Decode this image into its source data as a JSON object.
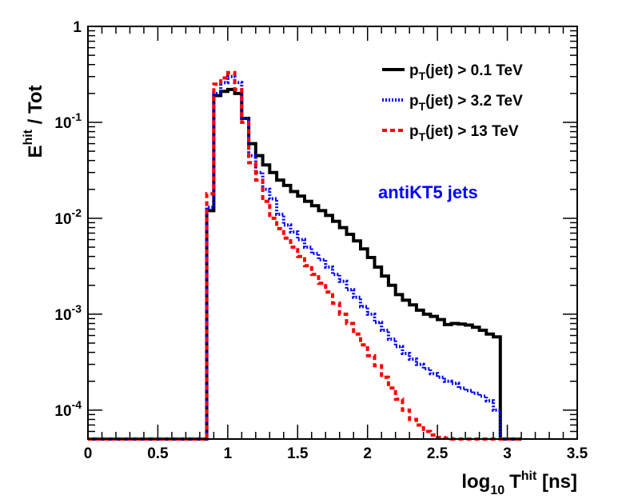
{
  "chart_data": {
    "type": "line",
    "step": true,
    "x_title": {
      "main": "log",
      "sub": "10",
      "var": "T",
      "sup": "hit",
      "unit": " [ns]"
    },
    "y_title": {
      "var": "E",
      "sup": "hit",
      "rest": "  / Tot"
    },
    "xlim": [
      0,
      3.5
    ],
    "ylim": [
      5e-05,
      1
    ],
    "yscale": "log",
    "x_ticks": [
      "0",
      "0.5",
      "1",
      "1.5",
      "2",
      "2.5",
      "3",
      "3.5"
    ],
    "y_ticks": [
      {
        "base": "10",
        "exp": "-4"
      },
      {
        "base": "10",
        "exp": "-3"
      },
      {
        "base": "10",
        "exp": "-2"
      },
      {
        "base": "10",
        "exp": "-1"
      },
      {
        "base": "1",
        "exp": ""
      }
    ],
    "annotation": {
      "text": "antiKT5 jets",
      "color": "#0000ff"
    },
    "legend_position": "top-right",
    "series": [
      {
        "legend": {
          "main": "p",
          "sub": "T",
          "rest": "(jet) > 0.1 TeV"
        },
        "color": "#000000",
        "dash": "solid",
        "x": [
          0,
          0.85,
          0.9,
          0.95,
          1.0,
          1.05,
          1.1,
          1.15,
          1.2,
          1.25,
          1.3,
          1.35,
          1.4,
          1.45,
          1.5,
          1.55,
          1.6,
          1.65,
          1.7,
          1.75,
          1.8,
          1.85,
          1.9,
          1.95,
          2.0,
          2.05,
          2.1,
          2.15,
          2.2,
          2.25,
          2.3,
          2.35,
          2.4,
          2.45,
          2.5,
          2.55,
          2.6,
          2.65,
          2.7,
          2.75,
          2.8,
          2.85,
          2.9,
          2.95,
          3.0,
          3.05
        ],
        "y": [
          5e-05,
          0.012,
          0.19,
          0.21,
          0.22,
          0.2,
          0.11,
          0.06,
          0.045,
          0.036,
          0.03,
          0.025,
          0.022,
          0.019,
          0.017,
          0.015,
          0.0135,
          0.012,
          0.0107,
          0.0093,
          0.008,
          0.0068,
          0.0058,
          0.0048,
          0.0039,
          0.0031,
          0.0025,
          0.002,
          0.0016,
          0.0014,
          0.00125,
          0.0011,
          0.001,
          0.00095,
          0.00088,
          0.00078,
          0.0008,
          0.00079,
          0.00077,
          0.00073,
          0.00068,
          0.00062,
          0.00058,
          5e-05,
          5e-05,
          5e-05
        ]
      },
      {
        "legend": {
          "main": "p",
          "sub": "T",
          "rest": "(jet) > 3.2 TeV"
        },
        "color": "#0000ff",
        "dash": "dotted",
        "x": [
          0,
          0.85,
          0.9,
          0.95,
          1.0,
          1.05,
          1.1,
          1.15,
          1.2,
          1.25,
          1.3,
          1.35,
          1.4,
          1.45,
          1.5,
          1.55,
          1.6,
          1.65,
          1.7,
          1.75,
          1.8,
          1.85,
          1.9,
          1.95,
          2.0,
          2.05,
          2.1,
          2.15,
          2.2,
          2.25,
          2.3,
          2.35,
          2.4,
          2.45,
          2.5,
          2.55,
          2.6,
          2.65,
          2.7,
          2.75,
          2.8,
          2.85,
          2.9,
          2.95,
          3.0,
          3.05
        ],
        "y": [
          5e-05,
          0.013,
          0.2,
          0.26,
          0.3,
          0.26,
          0.11,
          0.045,
          0.03,
          0.02,
          0.016,
          0.011,
          0.0085,
          0.0072,
          0.006,
          0.005,
          0.0043,
          0.0037,
          0.0031,
          0.0026,
          0.0022,
          0.0018,
          0.0015,
          0.0012,
          0.001,
          0.00082,
          0.00068,
          0.00055,
          0.00046,
          0.00039,
          0.00034,
          0.0003,
          0.00027,
          0.00024,
          0.00022,
          0.0002,
          0.00019,
          0.00017,
          0.00016,
          0.00015,
          0.00014,
          0.000125,
          0.0001,
          5e-05,
          5e-05,
          5e-05
        ]
      },
      {
        "legend": {
          "main": "p",
          "sub": "T",
          "rest": "(jet) > 13 TeV"
        },
        "color": "#ff0000",
        "dash": "dashed",
        "x": [
          0,
          0.8,
          0.85,
          0.9,
          0.95,
          1.0,
          1.05,
          1.1,
          1.15,
          1.2,
          1.25,
          1.3,
          1.35,
          1.4,
          1.45,
          1.5,
          1.55,
          1.6,
          1.65,
          1.7,
          1.75,
          1.8,
          1.85,
          1.9,
          1.95,
          2.0,
          2.05,
          2.1,
          2.15,
          2.2,
          2.25,
          2.3,
          2.35,
          2.4,
          2.45,
          2.5,
          2.55,
          2.6,
          2.65,
          2.7,
          2.75,
          2.8,
          2.85,
          2.9,
          2.95,
          3.0,
          3.05
        ],
        "y": [
          5e-05,
          5e-05,
          0.018,
          0.25,
          0.29,
          0.33,
          0.22,
          0.1,
          0.038,
          0.025,
          0.015,
          0.01,
          0.0078,
          0.0062,
          0.005,
          0.004,
          0.0032,
          0.0026,
          0.0021,
          0.0017,
          0.0013,
          0.001,
          0.0008,
          0.00062,
          0.00048,
          0.00037,
          0.00029,
          0.00022,
          0.00017,
          0.00013,
          0.0001,
          8e-05,
          7e-05,
          6e-05,
          5.5e-05,
          5.2e-05,
          5.1e-05,
          5e-05,
          5e-05,
          5e-05,
          5e-05,
          5e-05,
          5e-05,
          5e-05,
          5e-05,
          5e-05,
          5e-05
        ]
      }
    ]
  }
}
